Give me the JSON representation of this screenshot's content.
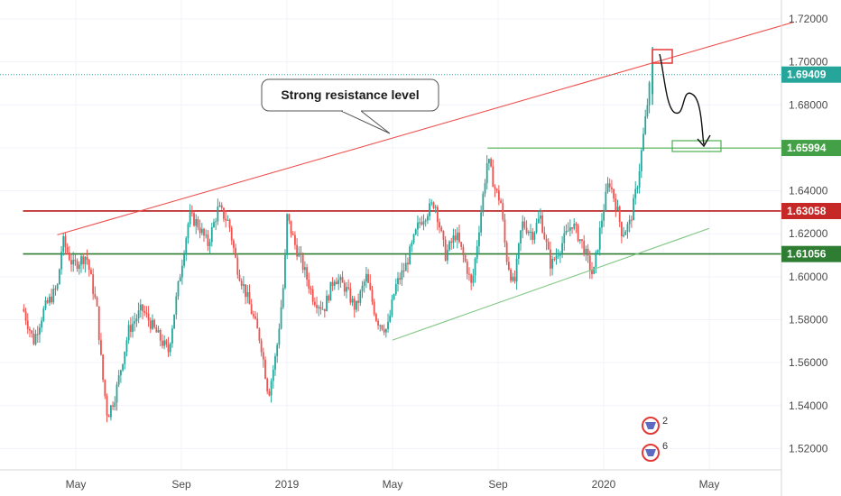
{
  "chart_data": {
    "type": "candlestick",
    "x_ticks": [
      "May",
      "Sep",
      "2019",
      "May",
      "Sep",
      "2020",
      "May"
    ],
    "y_ticks": [
      "1.72000",
      "1.70000",
      "1.68000",
      "1.66000",
      "1.64000",
      "1.62000",
      "1.60000",
      "1.58000",
      "1.56000",
      "1.54000",
      "1.52000"
    ],
    "y_tick_values": [
      1.72,
      1.7,
      1.68,
      1.66,
      1.64,
      1.62,
      1.6,
      1.58,
      1.56,
      1.54,
      1.52
    ],
    "ylim": [
      1.508,
      1.728
    ],
    "x_range_months": [
      0,
      26
    ],
    "x_tick_months": [
      2,
      6,
      10,
      14,
      18,
      22,
      26
    ],
    "price_series": [
      [
        0,
        1.585
      ],
      [
        0.4,
        1.57
      ],
      [
        0.8,
        1.585
      ],
      [
        1.3,
        1.595
      ],
      [
        1.5,
        1.617
      ],
      [
        1.9,
        1.605
      ],
      [
        2.4,
        1.61
      ],
      [
        2.8,
        1.585
      ],
      [
        3.0,
        1.555
      ],
      [
        3.2,
        1.535
      ],
      [
        3.5,
        1.545
      ],
      [
        4.0,
        1.575
      ],
      [
        4.5,
        1.585
      ],
      [
        5.0,
        1.575
      ],
      [
        5.5,
        1.565
      ],
      [
        6.0,
        1.605
      ],
      [
        6.3,
        1.628
      ],
      [
        6.6,
        1.625
      ],
      [
        7.0,
        1.615
      ],
      [
        7.4,
        1.632
      ],
      [
        7.8,
        1.625
      ],
      [
        8.1,
        1.605
      ],
      [
        8.5,
        1.59
      ],
      [
        9.0,
        1.57
      ],
      [
        9.3,
        1.545
      ],
      [
        9.6,
        1.565
      ],
      [
        9.9,
        1.6
      ],
      [
        10.0,
        1.628
      ],
      [
        10.3,
        1.615
      ],
      [
        10.6,
        1.605
      ],
      [
        11.0,
        1.59
      ],
      [
        11.4,
        1.585
      ],
      [
        11.8,
        1.6
      ],
      [
        12.2,
        1.595
      ],
      [
        12.6,
        1.585
      ],
      [
        13.0,
        1.6
      ],
      [
        13.4,
        1.58
      ],
      [
        13.8,
        1.575
      ],
      [
        14.1,
        1.595
      ],
      [
        14.5,
        1.605
      ],
      [
        15.0,
        1.625
      ],
      [
        15.6,
        1.635
      ],
      [
        16.0,
        1.61
      ],
      [
        16.4,
        1.62
      ],
      [
        16.8,
        1.605
      ],
      [
        17.0,
        1.595
      ],
      [
        17.3,
        1.625
      ],
      [
        17.6,
        1.655
      ],
      [
        17.9,
        1.64
      ],
      [
        18.1,
        1.635
      ],
      [
        18.3,
        1.61
      ],
      [
        18.6,
        1.595
      ],
      [
        18.9,
        1.625
      ],
      [
        19.3,
        1.62
      ],
      [
        19.6,
        1.628
      ],
      [
        20.0,
        1.605
      ],
      [
        20.4,
        1.615
      ],
      [
        20.8,
        1.625
      ],
      [
        21.2,
        1.615
      ],
      [
        21.6,
        1.6
      ],
      [
        21.9,
        1.625
      ],
      [
        22.2,
        1.645
      ],
      [
        22.5,
        1.632
      ],
      [
        22.7,
        1.62
      ],
      [
        23.0,
        1.625
      ],
      [
        23.3,
        1.645
      ],
      [
        23.6,
        1.675
      ],
      [
        23.8,
        1.695
      ]
    ],
    "lines": [
      {
        "name": "resistance-trendline",
        "color": "#ef5350",
        "points": [
          [
            1.3,
            1.6195
          ],
          [
            29.2,
            1.7185
          ]
        ]
      },
      {
        "name": "support-trendline",
        "color": "#81c784",
        "points": [
          [
            14.0,
            1.5705
          ],
          [
            26.0,
            1.6225
          ]
        ]
      },
      {
        "name": "level-1.65994-line",
        "color": "#4caf50",
        "points": [
          [
            17.6,
            1.6599
          ],
          [
            32,
            1.6599
          ]
        ]
      },
      {
        "name": "level-1.63058-line",
        "color": "#b71c1c",
        "points": [
          [
            0,
            1.6306
          ],
          [
            32,
            1.6306
          ]
        ]
      },
      {
        "name": "level-1.61056-line",
        "color": "#2e7d32",
        "points": [
          [
            0,
            1.6106
          ],
          [
            32,
            1.6106
          ]
        ]
      }
    ],
    "price_labels": [
      {
        "value": "1.69409",
        "color": "#26a69a"
      },
      {
        "value": "1.65994",
        "color": "#43a047"
      },
      {
        "value": "1.63058",
        "color": "#c62828"
      },
      {
        "value": "1.61056",
        "color": "#2e7d32"
      }
    ],
    "annotations": [
      {
        "text": "Strong resistance level"
      }
    ],
    "badges": [
      "2",
      "6"
    ],
    "colors": {
      "up": "#26a69a",
      "down": "#ef5350"
    }
  }
}
